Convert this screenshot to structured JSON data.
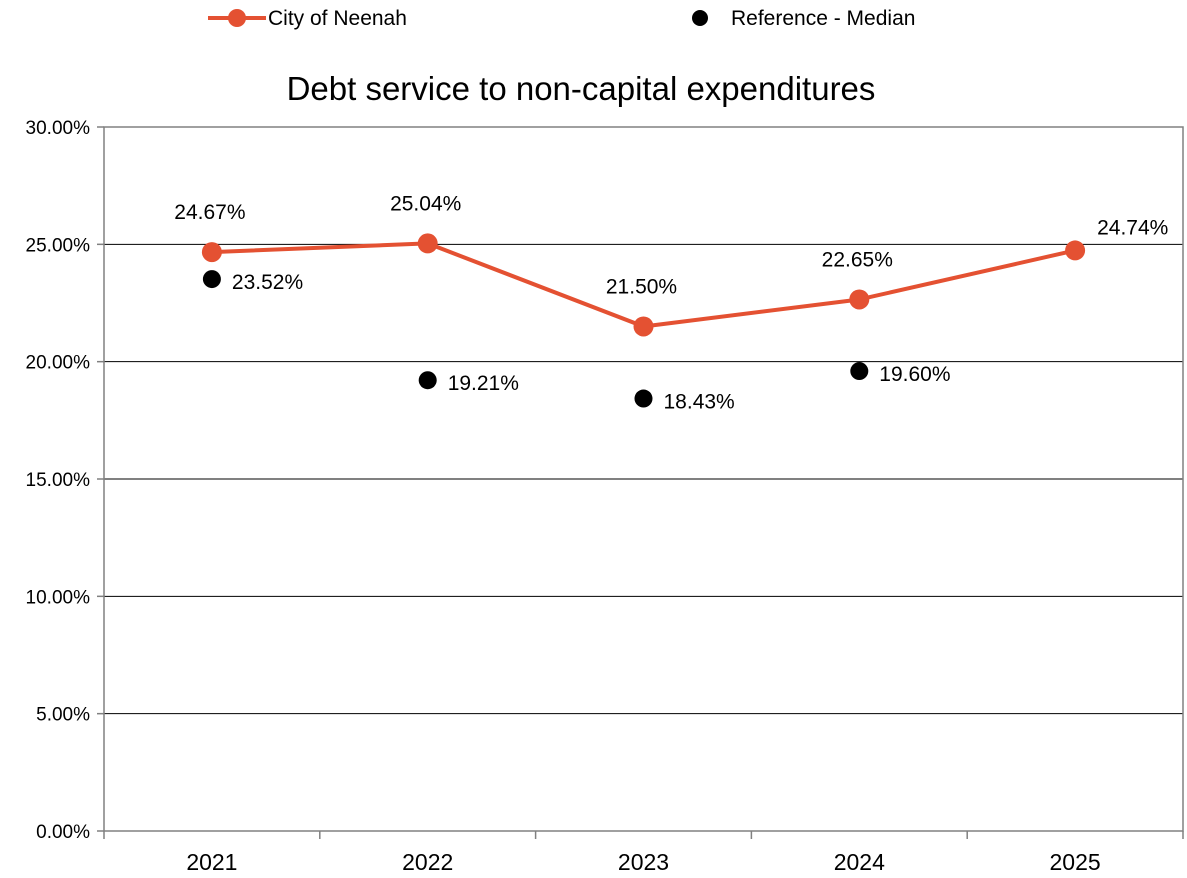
{
  "chart_data": {
    "type": "line",
    "title": "Debt service to non-capital expenditures",
    "xlabel": "",
    "ylabel": "",
    "categories": [
      "2021",
      "2022",
      "2023",
      "2024",
      "2025"
    ],
    "ylim": [
      0,
      30
    ],
    "yticks": [
      0,
      5,
      10,
      15,
      20,
      25,
      30
    ],
    "ytick_labels": [
      "0.00%",
      "5.00%",
      "10.00%",
      "15.00%",
      "20.00%",
      "25.00%",
      "30.00%"
    ],
    "grid": "horizontal",
    "legend_position": "top",
    "series": [
      {
        "name": "City of Neenah",
        "style": "line-marker",
        "color": "#E45132",
        "values": [
          24.67,
          25.04,
          21.5,
          22.65,
          24.74
        ],
        "labels": [
          "24.67%",
          "25.04%",
          "21.50%",
          "22.65%",
          "24.74%"
        ]
      },
      {
        "name": "Reference - Median",
        "style": "marker",
        "color": "#000000",
        "values": [
          23.52,
          19.21,
          18.43,
          19.6,
          null
        ],
        "labels": [
          "23.52%",
          "19.21%",
          "18.43%",
          "19.60%",
          null
        ]
      }
    ]
  }
}
